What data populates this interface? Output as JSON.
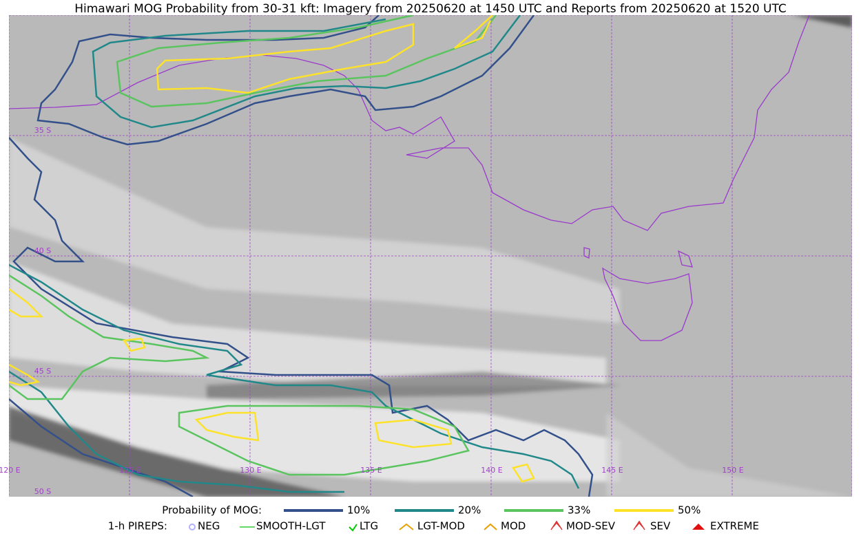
{
  "title": "Himawari MOG Probability from 30-31 kft: Imagery from 20250620 at 1450 UTC and Reports from 20250620 at 1520 UTC",
  "map": {
    "lon_labels": [
      "120 E",
      "125 E",
      "130 E",
      "135 E",
      "140 E",
      "145 E",
      "150 E"
    ],
    "lat_labels": [
      "35 S",
      "40 S",
      "45 S",
      "50 S"
    ]
  },
  "legend": {
    "probability": {
      "label": "Probability of MOG:",
      "items": [
        {
          "label": "10%",
          "color": "#33508a"
        },
        {
          "label": "20%",
          "color": "#21888a"
        },
        {
          "label": "33%",
          "color": "#5ac45e"
        },
        {
          "label": "50%",
          "color": "#fde22a"
        }
      ]
    },
    "pireps": {
      "label": "1-h PIREPS:",
      "items": [
        "NEG",
        "SMOOTH-LGT",
        "LTG",
        "LGT-MOD",
        "MOD",
        "MOD-SEV",
        "SEV",
        "EXTREME"
      ]
    }
  }
}
